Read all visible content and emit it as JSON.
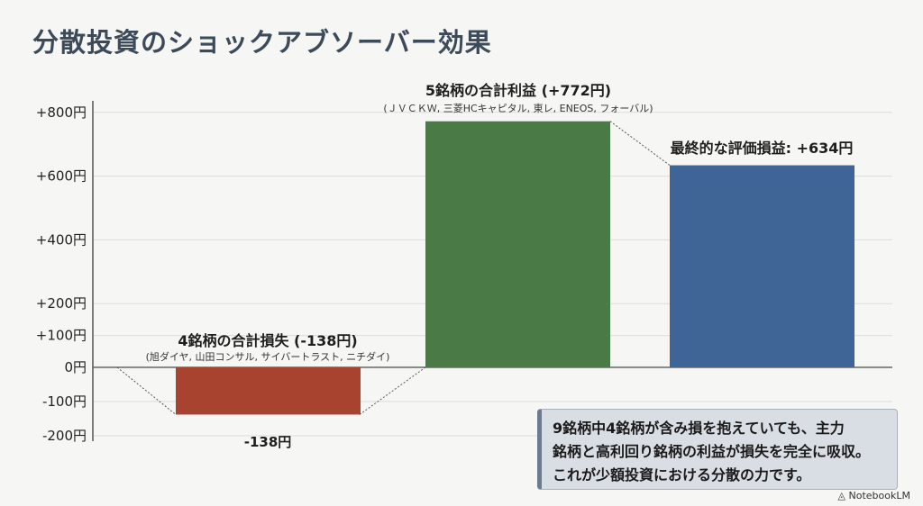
{
  "chart_data": {
    "type": "bar",
    "title": "分散投資のショックアブソーバー効果",
    "categories": [
      "4銘柄の合計損失",
      "5銘柄の合計利益",
      "最終的な評価損益"
    ],
    "values": [
      -138,
      772,
      634
    ],
    "colors": [
      "#a8432f",
      "#4a7a46",
      "#3f6596"
    ],
    "ylim": [
      -200,
      800
    ],
    "yticks": [
      {
        "value": 800,
        "label": "+800円"
      },
      {
        "value": 600,
        "label": "+600円"
      },
      {
        "value": 400,
        "label": "+400円"
      },
      {
        "value": 200,
        "label": "+200円"
      },
      {
        "value": 100,
        "label": "+100円"
      },
      {
        "value": 0,
        "label": "0円"
      },
      {
        "value": -100,
        "label": "-100円"
      },
      {
        "value": -200,
        "label": "-200円"
      }
    ],
    "annotations": {
      "loss_title": "4銘柄の合計損失 (-138円)",
      "loss_detail": "(旭ダイヤ, 山田コンサル, サイバートラスト, ニチダイ)",
      "loss_value": "-138円",
      "gain_title": "5銘柄の合計利益 (+772円)",
      "gain_detail": "(ＪＶＣＫＷ, 三菱HCキャピタル, 東レ, ENEOS, フォーバル)",
      "final_title": "最終的な評価損益: +634円"
    },
    "grid": true,
    "xlabel": "",
    "ylabel": ""
  },
  "note": [
    "9銘柄中4銘柄が含み損を抱えていても、主力",
    "銘柄と高利回り銘柄の利益が損失を完全に吸収。",
    "これが少額投資における分散の力です。"
  ],
  "logo": "NotebookLM"
}
